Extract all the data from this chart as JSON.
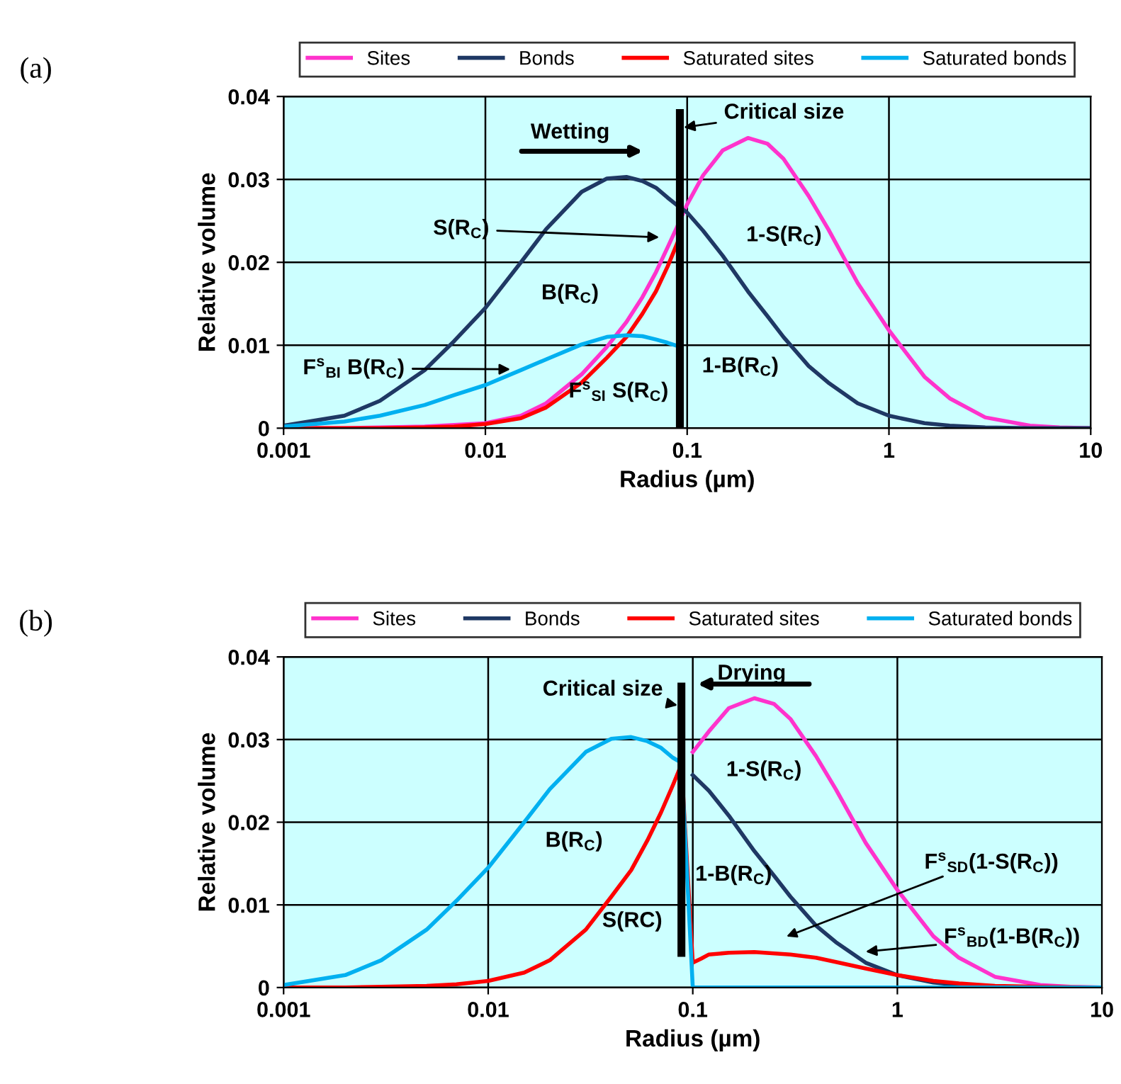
{
  "chart_data": [
    {
      "type": "line",
      "xlabel": "Radius (µm)",
      "ylabel": "Relative volume",
      "log": "x",
      "xlim": [
        0.001,
        10
      ],
      "xticks": [
        0.001,
        0.01,
        0.1,
        1,
        10
      ],
      "ylim": [
        0,
        0.04
      ],
      "yticks": [
        0,
        0.01,
        0.02,
        0.03,
        0.04
      ],
      "grid": true,
      "legend": "top",
      "marker": "none",
      "line_style": "solid",
      "series": [
        {
          "name": "Sites",
          "color": "#ff33cc",
          "x": [
            0.001,
            0.002,
            0.003,
            0.005,
            0.007,
            0.01,
            0.015,
            0.02,
            0.03,
            0.04,
            0.05,
            0.06,
            0.07,
            0.08,
            0.09,
            0.1,
            0.12,
            0.15,
            0.2,
            0.25,
            0.3,
            0.4,
            0.5,
            0.7,
            1,
            1.5,
            2,
            3,
            5,
            7,
            10
          ],
          "values": [
            0,
            0,
            0.0001,
            0.0002,
            0.0004,
            0.0006,
            0.0015,
            0.003,
            0.0065,
            0.0098,
            0.0128,
            0.0158,
            0.0188,
            0.0218,
            0.0245,
            0.027,
            0.0305,
            0.0335,
            0.035,
            0.0343,
            0.0325,
            0.028,
            0.024,
            0.0175,
            0.0118,
            0.0062,
            0.0036,
            0.0013,
            0.0003,
            0.0001,
            0
          ]
        },
        {
          "name": "Bonds",
          "color": "#1f3864",
          "x": [
            0.001,
            0.002,
            0.003,
            0.005,
            0.007,
            0.01,
            0.015,
            0.02,
            0.03,
            0.04,
            0.05,
            0.06,
            0.07,
            0.08,
            0.09,
            0.1,
            0.12,
            0.15,
            0.2,
            0.25,
            0.3,
            0.4,
            0.5,
            0.7,
            1,
            1.5,
            2,
            3,
            5,
            7,
            10
          ],
          "values": [
            0.0003,
            0.0015,
            0.0033,
            0.007,
            0.0105,
            0.0145,
            0.02,
            0.024,
            0.0285,
            0.0301,
            0.0303,
            0.0298,
            0.029,
            0.0278,
            0.0268,
            0.026,
            0.0238,
            0.0208,
            0.0165,
            0.0135,
            0.011,
            0.0075,
            0.0055,
            0.003,
            0.0015,
            0.0006,
            0.0003,
            0.0001,
            0,
            0,
            0
          ]
        },
        {
          "name": "Saturated sites",
          "color": "#ff0000",
          "x": [
            0.001,
            0.002,
            0.003,
            0.005,
            0.007,
            0.01,
            0.015,
            0.02,
            0.03,
            0.04,
            0.05,
            0.06,
            0.07,
            0.08,
            0.09
          ],
          "values": [
            0,
            0,
            0,
            0.0001,
            0.0002,
            0.0005,
            0.0012,
            0.0025,
            0.0055,
            0.0085,
            0.011,
            0.0138,
            0.0165,
            0.0195,
            0.0225
          ]
        },
        {
          "name": "Saturated bonds",
          "color": "#00b0f0",
          "x": [
            0.001,
            0.002,
            0.003,
            0.005,
            0.007,
            0.01,
            0.015,
            0.02,
            0.03,
            0.04,
            0.05,
            0.06,
            0.07,
            0.08,
            0.09
          ],
          "values": [
            0.0002,
            0.0008,
            0.0015,
            0.0028,
            0.004,
            0.0052,
            0.007,
            0.0083,
            0.0101,
            0.011,
            0.0112,
            0.0111,
            0.0107,
            0.0103,
            0.0099
          ]
        }
      ],
      "ref_lines": [
        {
          "axis": "x",
          "value": 0.092,
          "label": "Critical size",
          "color": "#000000"
        }
      ],
      "annotations": [
        "(a)",
        "Wetting",
        {
          "text": "S(R$_{C}$)",
          "x": 0.076,
          "y": 0.023
        },
        "B(R$_{C}$)",
        "1-S(R$_{C}$)",
        {
          "text": "F$^{s}$$_{BI}$ B(R$_{C}$)",
          "x": 0.0139,
          "y": 0.0071
        },
        "F$^{s}$$_{SI}$ S(R$_{C}$)",
        "1-B(R$_{C}$)"
      ]
    },
    {
      "type": "line",
      "xlabel": "Radius (µm)",
      "ylabel": "Relative volume",
      "log": "x",
      "xlim": [
        0.001,
        10
      ],
      "xticks": [
        0.001,
        0.01,
        0.1,
        1,
        10
      ],
      "ylim": [
        0,
        0.04
      ],
      "yticks": [
        0,
        0.01,
        0.02,
        0.03,
        0.04
      ],
      "grid": true,
      "legend": "top",
      "marker": "none",
      "line_style": "solid",
      "series": [
        {
          "name": "Sites",
          "color": "#ff33cc",
          "x": [
            0.1,
            0.12,
            0.15,
            0.2,
            0.25,
            0.3,
            0.4,
            0.5,
            0.7,
            1,
            1.5,
            2,
            3,
            5,
            7,
            10
          ],
          "values": [
            0.0285,
            0.031,
            0.0338,
            0.035,
            0.0343,
            0.0325,
            0.028,
            0.024,
            0.0175,
            0.0118,
            0.0062,
            0.0036,
            0.0013,
            0.0003,
            0.0001,
            0
          ]
        },
        {
          "name": "Bonds",
          "color": "#1f3864",
          "x": [
            0.1,
            0.12,
            0.15,
            0.2,
            0.25,
            0.3,
            0.4,
            0.5,
            0.7,
            1,
            1.5,
            2,
            3
          ],
          "values": [
            0.0257,
            0.0238,
            0.0208,
            0.0165,
            0.0135,
            0.011,
            0.0075,
            0.0055,
            0.003,
            0.0015,
            0.0006,
            0.0003,
            0.0001
          ]
        },
        {
          "name": "Saturated sites",
          "color": "#ff0000",
          "x": [
            0.001,
            0.002,
            0.003,
            0.005,
            0.007,
            0.01,
            0.015,
            0.02,
            0.03,
            0.04,
            0.05,
            0.06,
            0.07,
            0.08,
            0.088,
            0.1,
            0.11,
            0.12,
            0.15,
            0.2,
            0.3,
            0.4,
            0.5,
            0.7,
            1,
            1.5,
            2,
            3,
            5,
            10
          ],
          "values": [
            0,
            0,
            0.0001,
            0.0002,
            0.0004,
            0.0008,
            0.0018,
            0.0033,
            0.007,
            0.011,
            0.0142,
            0.0178,
            0.0212,
            0.0245,
            0.027,
            0.003,
            0.0035,
            0.004,
            0.0042,
            0.0043,
            0.004,
            0.0036,
            0.0031,
            0.0023,
            0.0015,
            0.0008,
            0.0005,
            0.0002,
            0.0001,
            0
          ]
        },
        {
          "name": "Saturated bonds",
          "color": "#00b0f0",
          "x": [
            0.001,
            0.002,
            0.003,
            0.005,
            0.007,
            0.01,
            0.015,
            0.02,
            0.03,
            0.04,
            0.05,
            0.06,
            0.07,
            0.08,
            0.088,
            0.1,
            0.2,
            0.5,
            1,
            2,
            5,
            10
          ],
          "values": [
            0.0003,
            0.0015,
            0.0033,
            0.007,
            0.0105,
            0.0145,
            0.02,
            0.024,
            0.0285,
            0.0301,
            0.0303,
            0.0298,
            0.029,
            0.0278,
            0.0272,
            0,
            0,
            0,
            0,
            0,
            0,
            0
          ]
        }
      ],
      "ref_lines": [
        {
          "axis": "x",
          "value": 0.088,
          "label": "Critical size",
          "color": "#000000"
        }
      ],
      "annotations": [
        "(b)",
        "Drying",
        "B(R$_{C}$)",
        "1-S(R$_{C}$)",
        "1-B(R$_{C}$)",
        "S(RC)",
        "F$^{s}$$_{SD}$(1-S(R$_{C}$))",
        {
          "text": "F$^{s}$$_{BD}$(1-B(R$_{C}$))",
          "x": 0.67,
          "y": 0.0043
        }
      ]
    }
  ]
}
